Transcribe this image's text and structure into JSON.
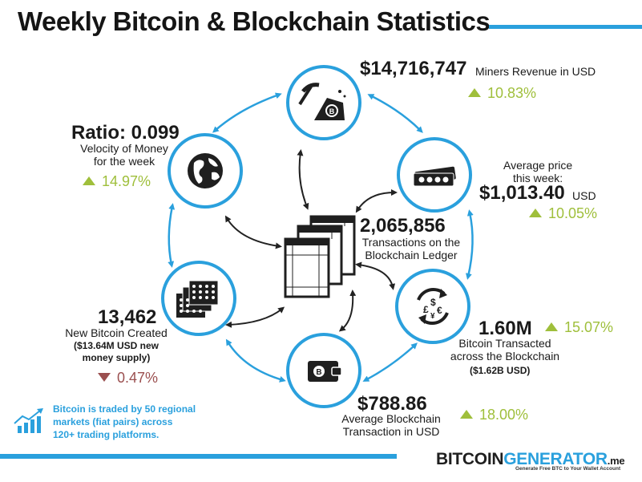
{
  "title": "Weekly Bitcoin & Blockchain Statistics",
  "colors": {
    "accent": "#2aa0dd",
    "positive": "#9fbf3b",
    "negative": "#9b5050",
    "node_border": "#2aa0dd",
    "node_fill": "#1f1f1f"
  },
  "stats": {
    "miners_revenue": {
      "value": "$14,716,747",
      "label": "Miners Revenue in USD",
      "change": "10.83%",
      "direction": "up",
      "icon": "pickaxe-mining-icon"
    },
    "average_price": {
      "label_line1": "Average price",
      "label_line2": "this week:",
      "value": "$1,013.40",
      "unit": "USD",
      "change": "10.05%",
      "direction": "up",
      "icon": "banknotes-icon"
    },
    "transactions": {
      "value": "2,065,856",
      "label_line1": "Transactions on the",
      "label_line2": "Blockchain Ledger",
      "icon": "ledger-sheets-icon"
    },
    "bitcoin_transacted": {
      "value": "1.60M",
      "label_line1": "Bitcoin Transacted",
      "label_line2": "across the Blockchain",
      "sub": "($1.62B USD)",
      "change": "15.07%",
      "direction": "up",
      "icon": "currency-exchange-icon"
    },
    "average_transaction": {
      "value": "$788.86",
      "label_line1": "Average Blockchain",
      "label_line2": "Transaction in USD",
      "change": "18.00%",
      "direction": "up",
      "icon": "bitcoin-wallet-icon"
    },
    "new_bitcoin": {
      "value": "13,462",
      "label_line1": "New Bitcoin Created",
      "sub_line1": "($13.64M USD new",
      "sub_line2": "money supply)",
      "change": "0.47%",
      "direction": "down",
      "icon": "coin-stacks-icon"
    },
    "velocity": {
      "value": "Ratio: 0.099",
      "label_line1": "Velocity of Money",
      "label_line2": "for the week",
      "change": "14.97%",
      "direction": "up",
      "icon": "globe-icon"
    }
  },
  "note": {
    "line1": "Bitcoin is traded by 50 regional",
    "line2": "markets (fiat pairs) across",
    "line3": "120+ trading platforms.",
    "icon": "growth-chart-icon"
  },
  "brand": {
    "part1": "BITCOIN",
    "part2": "GENERATOR",
    "part3": ".me",
    "tagline": "Generate Free BTC to Your Wallet Account"
  }
}
